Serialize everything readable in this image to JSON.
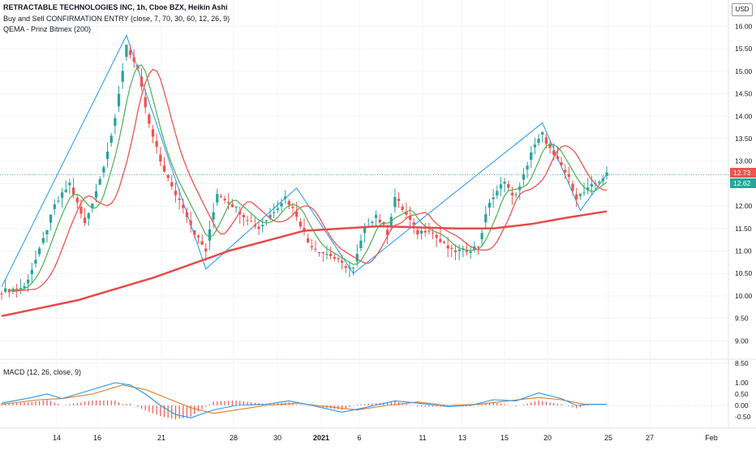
{
  "legend": {
    "title": "RETRACTABLE TECHNOLOGIES INC, 1h, Cboe BZX, Heikin Ashi",
    "indicator1": "Buy and Sell CONFIRMATION ENTRY (close, 7, 70, 30, 60, 12, 26, 9)",
    "indicator2": "QEMA - Prinz Bitmex (200)",
    "macd": "MACD (12, 26, close, 9)",
    "currency": "USD"
  },
  "colors": {
    "bull": "#26a69a",
    "bear": "#ef5350",
    "ema200": "#e64a4a",
    "fast_ma": "#4caf50",
    "slow_ma": "#ef5350",
    "zigzag": "#2196f3",
    "macd": "#2196f3",
    "signal": "#e07b24",
    "grid": "#f0f3fa",
    "axis_text": "#131722"
  },
  "price_labels": [
    {
      "value": "12.73",
      "color": "#ef5350"
    },
    {
      "value": "12.62",
      "color": "#26a69a"
    }
  ],
  "chart_data": [
    {
      "type": "candlestick",
      "style": "Heikin Ashi",
      "title": "RETRACTABLE TECHNOLOGIES INC, 1h, Cboe BZX, Heikin Ashi",
      "x_tick_labels": [
        "14",
        "16",
        "21",
        "28",
        "30",
        "2021",
        "6",
        "11",
        "13",
        "15",
        "20",
        "25",
        "27",
        "Feb"
      ],
      "y_tick_labels": [
        "16.00",
        "15.50",
        "15.00",
        "14.50",
        "14.00",
        "13.50",
        "13.00",
        "12.50",
        "12.00",
        "11.50",
        "11.00",
        "10.50",
        "10.00",
        "9.50",
        "9.00",
        "8.50"
      ],
      "ylim": [
        8.5,
        16.2
      ],
      "close_path": [
        [
          0,
          10.1
        ],
        [
          6,
          10.2
        ],
        [
          10,
          11.0
        ],
        [
          14,
          12.0
        ],
        [
          18,
          12.5
        ],
        [
          22,
          11.6
        ],
        [
          26,
          12.6
        ],
        [
          30,
          13.9
        ],
        [
          33,
          15.6
        ],
        [
          36,
          15.0
        ],
        [
          39,
          13.8
        ],
        [
          42,
          13.0
        ],
        [
          45,
          12.4
        ],
        [
          48,
          12.0
        ],
        [
          51,
          11.4
        ],
        [
          54,
          11.0
        ],
        [
          57,
          12.3
        ],
        [
          60,
          12.1
        ],
        [
          64,
          11.8
        ],
        [
          68,
          11.5
        ],
        [
          72,
          11.9
        ],
        [
          75,
          12.2
        ],
        [
          78,
          11.8
        ],
        [
          81,
          11.2
        ],
        [
          84,
          11.0
        ],
        [
          87,
          10.9
        ],
        [
          90,
          10.7
        ],
        [
          93,
          10.6
        ],
        [
          96,
          11.5
        ],
        [
          99,
          11.8
        ],
        [
          102,
          11.4
        ],
        [
          104,
          12.2
        ],
        [
          107,
          11.8
        ],
        [
          110,
          11.4
        ],
        [
          113,
          11.5
        ],
        [
          116,
          11.2
        ],
        [
          119,
          11.0
        ],
        [
          122,
          11.0
        ],
        [
          126,
          11.1
        ],
        [
          129,
          12.1
        ],
        [
          131,
          12.3
        ],
        [
          133,
          12.6
        ],
        [
          135,
          12.2
        ],
        [
          137,
          12.4
        ],
        [
          140,
          13.2
        ],
        [
          143,
          13.6
        ],
        [
          146,
          13.1
        ],
        [
          148,
          12.9
        ],
        [
          150,
          12.6
        ],
        [
          152,
          12.2
        ],
        [
          154,
          12.3
        ],
        [
          157,
          12.5
        ],
        [
          160,
          12.7
        ]
      ]
    },
    {
      "type": "line",
      "name": "QEMA - Prinz Bitmex (200)",
      "points": [
        [
          0,
          9.55
        ],
        [
          20,
          9.9
        ],
        [
          40,
          10.4
        ],
        [
          60,
          11.0
        ],
        [
          80,
          11.45
        ],
        [
          100,
          11.55
        ],
        [
          120,
          11.5
        ],
        [
          130,
          11.5
        ],
        [
          140,
          11.6
        ],
        [
          150,
          11.75
        ],
        [
          160,
          11.88
        ]
      ]
    },
    {
      "type": "line",
      "name": "MACD (12, 26, close, 9)",
      "y_tick_labels": [
        "1.00",
        "0.50",
        "0.00",
        "-0.50"
      ],
      "ylim": [
        -0.8,
        1.2
      ],
      "series": [
        {
          "points": [
            [
              0,
              0.1
            ],
            [
              8,
              0.35
            ],
            [
              12,
              0.5
            ],
            [
              16,
              0.3
            ],
            [
              24,
              0.7
            ],
            [
              30,
              1.0
            ],
            [
              34,
              0.9
            ],
            [
              38,
              0.5
            ],
            [
              42,
              0.0
            ],
            [
              46,
              -0.4
            ],
            [
              50,
              -0.55
            ],
            [
              56,
              -0.2
            ],
            [
              62,
              0.0
            ],
            [
              70,
              0.05
            ],
            [
              76,
              0.2
            ],
            [
              82,
              0.0
            ],
            [
              90,
              -0.3
            ],
            [
              96,
              -0.1
            ],
            [
              104,
              0.2
            ],
            [
              110,
              0.1
            ],
            [
              118,
              -0.05
            ],
            [
              124,
              0.0
            ],
            [
              130,
              0.25
            ],
            [
              136,
              0.2
            ],
            [
              142,
              0.55
            ],
            [
              148,
              0.3
            ],
            [
              152,
              0.0
            ],
            [
              156,
              0.05
            ],
            [
              160,
              0.05
            ]
          ]
        },
        {
          "points": [
            [
              0,
              0.05
            ],
            [
              10,
              0.25
            ],
            [
              16,
              0.3
            ],
            [
              24,
              0.5
            ],
            [
              32,
              0.9
            ],
            [
              38,
              0.7
            ],
            [
              44,
              0.3
            ],
            [
              50,
              -0.1
            ],
            [
              56,
              -0.35
            ],
            [
              62,
              -0.2
            ],
            [
              70,
              0.0
            ],
            [
              78,
              0.1
            ],
            [
              86,
              -0.05
            ],
            [
              94,
              -0.2
            ],
            [
              102,
              0.0
            ],
            [
              110,
              0.15
            ],
            [
              118,
              0.0
            ],
            [
              126,
              0.05
            ],
            [
              134,
              0.2
            ],
            [
              142,
              0.35
            ],
            [
              148,
              0.25
            ],
            [
              154,
              0.05
            ],
            [
              160,
              0.05
            ]
          ]
        }
      ]
    }
  ]
}
